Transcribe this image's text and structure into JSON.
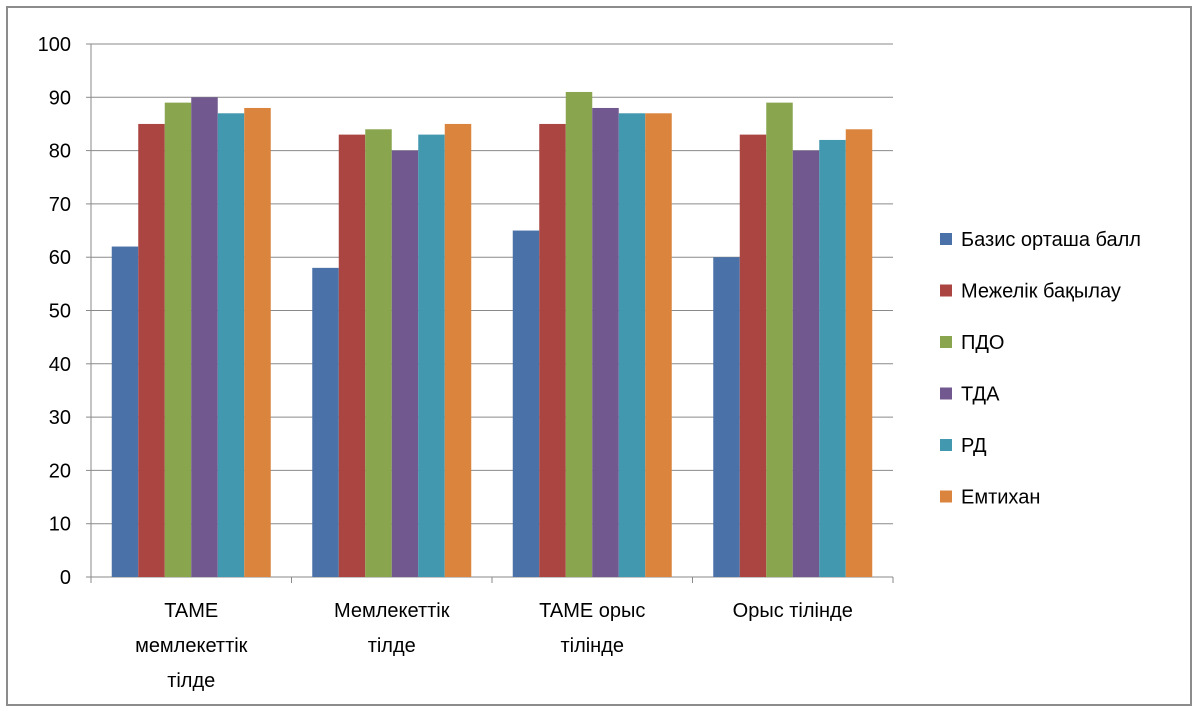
{
  "chart_data": {
    "type": "bar",
    "categories": [
      [
        "TAME",
        "мемлекеттік",
        "тілде"
      ],
      [
        "Мемлекеттік",
        "тілде"
      ],
      [
        "TAME орыс",
        "тілінде"
      ],
      [
        "Орыс тілінде"
      ]
    ],
    "series": [
      {
        "name": "Базис орташа балл",
        "color": "#4a72a8",
        "values": [
          62,
          58,
          65,
          60
        ]
      },
      {
        "name": "Межелік бақылау",
        "color": "#ab4542",
        "values": [
          85,
          83,
          85,
          83
        ]
      },
      {
        "name": "ПДО",
        "color": "#89a54e",
        "values": [
          89,
          84,
          91,
          89
        ]
      },
      {
        "name": "ТДА",
        "color": "#71588f",
        "values": [
          90,
          80,
          88,
          80
        ]
      },
      {
        "name": "РД",
        "color": "#4198af",
        "values": [
          87,
          83,
          87,
          82
        ]
      },
      {
        "name": "Емтихан",
        "color": "#db843d",
        "values": [
          88,
          85,
          87,
          84
        ]
      }
    ],
    "ylim": [
      0,
      100
    ],
    "yticks": [
      0,
      10,
      20,
      30,
      40,
      50,
      60,
      70,
      80,
      90,
      100
    ],
    "grid": true,
    "legend": "right",
    "title": "",
    "xlabel": "",
    "ylabel": ""
  }
}
